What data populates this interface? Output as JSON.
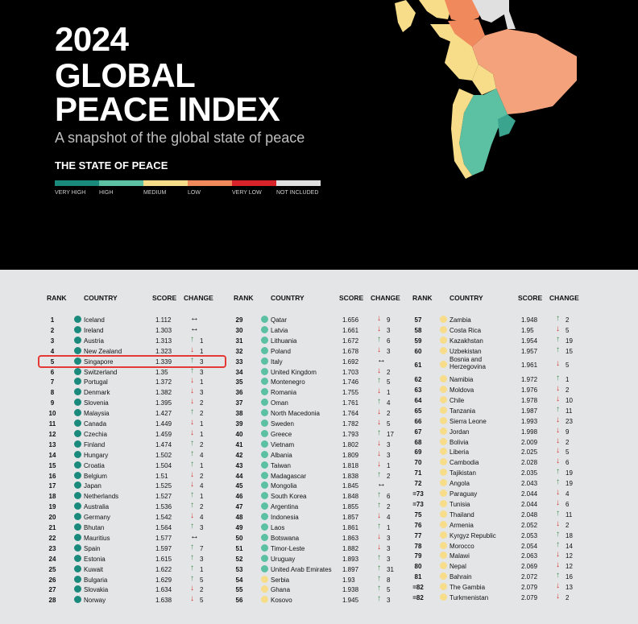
{
  "header": {
    "title_lines": [
      "2024",
      "GLOBAL",
      "PEACE INDEX"
    ],
    "subtitle": "A snapshot of the global state of peace",
    "section": "THE STATE OF PEACE"
  },
  "legend": [
    {
      "label": "VERY HIGH",
      "color": "#1a8a7d"
    },
    {
      "label": "HIGH",
      "color": "#5cc0a2"
    },
    {
      "label": "MEDIUM",
      "color": "#f7dd8a"
    },
    {
      "label": "LOW",
      "color": "#f08a5d"
    },
    {
      "label": "VERY LOW",
      "color": "#d8232a"
    },
    {
      "label": "NOT INCLUDED",
      "color": "#e0e0e0"
    }
  ],
  "table_headers": {
    "rank": "RANK",
    "country": "COUNTRY",
    "score": "SCORE",
    "change": "CHANGE"
  },
  "highlighted_country": "Singapore",
  "columns": [
    [
      {
        "rank": "1",
        "country": "Iceland",
        "score": "1.112",
        "dir": "same",
        "change": "",
        "color": "#1a8a7d"
      },
      {
        "rank": "2",
        "country": "Ireland",
        "score": "1.303",
        "dir": "same",
        "change": "",
        "color": "#1a8a7d"
      },
      {
        "rank": "3",
        "country": "Austria",
        "score": "1.313",
        "dir": "up",
        "change": "1",
        "color": "#1a8a7d"
      },
      {
        "rank": "4",
        "country": "New Zealand",
        "score": "1.323",
        "dir": "down",
        "change": "1",
        "color": "#1a8a7d"
      },
      {
        "rank": "5",
        "country": "Singapore",
        "score": "1.339",
        "dir": "up",
        "change": "3",
        "color": "#1a8a7d"
      },
      {
        "rank": "6",
        "country": "Switzerland",
        "score": "1.35",
        "dir": "up",
        "change": "3",
        "color": "#1a8a7d"
      },
      {
        "rank": "7",
        "country": "Portugal",
        "score": "1.372",
        "dir": "down",
        "change": "1",
        "color": "#1a8a7d"
      },
      {
        "rank": "8",
        "country": "Denmark",
        "score": "1.382",
        "dir": "down",
        "change": "3",
        "color": "#1a8a7d"
      },
      {
        "rank": "9",
        "country": "Slovenia",
        "score": "1.395",
        "dir": "down",
        "change": "2",
        "color": "#1a8a7d"
      },
      {
        "rank": "10",
        "country": "Malaysia",
        "score": "1.427",
        "dir": "up",
        "change": "2",
        "color": "#1a8a7d"
      },
      {
        "rank": "11",
        "country": "Canada",
        "score": "1.449",
        "dir": "down",
        "change": "1",
        "color": "#1a8a7d"
      },
      {
        "rank": "12",
        "country": "Czechia",
        "score": "1.459",
        "dir": "down",
        "change": "1",
        "color": "#1a8a7d"
      },
      {
        "rank": "13",
        "country": "Finland",
        "score": "1.474",
        "dir": "up",
        "change": "2",
        "color": "#1a8a7d"
      },
      {
        "rank": "14",
        "country": "Hungary",
        "score": "1.502",
        "dir": "up",
        "change": "4",
        "color": "#1a8a7d"
      },
      {
        "rank": "15",
        "country": "Croatia",
        "score": "1.504",
        "dir": "up",
        "change": "1",
        "color": "#1a8a7d"
      },
      {
        "rank": "16",
        "country": "Belgium",
        "score": "1.51",
        "dir": "down",
        "change": "2",
        "color": "#1a8a7d"
      },
      {
        "rank": "17",
        "country": "Japan",
        "score": "1.525",
        "dir": "down",
        "change": "4",
        "color": "#1a8a7d"
      },
      {
        "rank": "18",
        "country": "Netherlands",
        "score": "1.527",
        "dir": "up",
        "change": "1",
        "color": "#1a8a7d"
      },
      {
        "rank": "19",
        "country": "Australia",
        "score": "1.536",
        "dir": "up",
        "change": "2",
        "color": "#1a8a7d"
      },
      {
        "rank": "20",
        "country": "Germany",
        "score": "1.542",
        "dir": "down",
        "change": "4",
        "color": "#1a8a7d"
      },
      {
        "rank": "21",
        "country": "Bhutan",
        "score": "1.564",
        "dir": "up",
        "change": "3",
        "color": "#1a8a7d"
      },
      {
        "rank": "22",
        "country": "Mauritius",
        "score": "1.577",
        "dir": "same",
        "change": "",
        "color": "#1a8a7d"
      },
      {
        "rank": "23",
        "country": "Spain",
        "score": "1.597",
        "dir": "up",
        "change": "7",
        "color": "#1a8a7d"
      },
      {
        "rank": "24",
        "country": "Estonia",
        "score": "1.615",
        "dir": "up",
        "change": "3",
        "color": "#1a8a7d"
      },
      {
        "rank": "25",
        "country": "Kuwait",
        "score": "1.622",
        "dir": "up",
        "change": "1",
        "color": "#1a8a7d"
      },
      {
        "rank": "26",
        "country": "Bulgaria",
        "score": "1.629",
        "dir": "up",
        "change": "5",
        "color": "#1a8a7d"
      },
      {
        "rank": "27",
        "country": "Slovakia",
        "score": "1.634",
        "dir": "down",
        "change": "2",
        "color": "#1a8a7d"
      },
      {
        "rank": "28",
        "country": "Norway",
        "score": "1.638",
        "dir": "down",
        "change": "5",
        "color": "#1a8a7d"
      }
    ],
    [
      {
        "rank": "29",
        "country": "Qatar",
        "score": "1.656",
        "dir": "down",
        "change": "9",
        "color": "#5cc0a2"
      },
      {
        "rank": "30",
        "country": "Latvia",
        "score": "1.661",
        "dir": "down",
        "change": "3",
        "color": "#5cc0a2"
      },
      {
        "rank": "31",
        "country": "Lithuania",
        "score": "1.672",
        "dir": "up",
        "change": "6",
        "color": "#5cc0a2"
      },
      {
        "rank": "32",
        "country": "Poland",
        "score": "1.678",
        "dir": "down",
        "change": "3",
        "color": "#5cc0a2"
      },
      {
        "rank": "33",
        "country": "Italy",
        "score": "1.692",
        "dir": "same",
        "change": "",
        "color": "#5cc0a2"
      },
      {
        "rank": "34",
        "country": "United Kingdom",
        "score": "1.703",
        "dir": "down",
        "change": "2",
        "color": "#5cc0a2"
      },
      {
        "rank": "35",
        "country": "Montenegro",
        "score": "1.746",
        "dir": "up",
        "change": "5",
        "color": "#5cc0a2"
      },
      {
        "rank": "36",
        "country": "Romania",
        "score": "1.755",
        "dir": "down",
        "change": "1",
        "color": "#5cc0a2"
      },
      {
        "rank": "37",
        "country": "Oman",
        "score": "1.761",
        "dir": "up",
        "change": "4",
        "color": "#5cc0a2"
      },
      {
        "rank": "38",
        "country": "North Macedonia",
        "score": "1.764",
        "dir": "down",
        "change": "2",
        "color": "#5cc0a2"
      },
      {
        "rank": "39",
        "country": "Sweden",
        "score": "1.782",
        "dir": "down",
        "change": "5",
        "color": "#5cc0a2"
      },
      {
        "rank": "40",
        "country": "Greece",
        "score": "1.793",
        "dir": "up",
        "change": "17",
        "color": "#5cc0a2"
      },
      {
        "rank": "41",
        "country": "Vietnam",
        "score": "1.802",
        "dir": "down",
        "change": "3",
        "color": "#5cc0a2"
      },
      {
        "rank": "42",
        "country": "Albania",
        "score": "1.809",
        "dir": "down",
        "change": "3",
        "color": "#5cc0a2"
      },
      {
        "rank": "43",
        "country": "Taiwan",
        "score": "1.818",
        "dir": "down",
        "change": "1",
        "color": "#5cc0a2"
      },
      {
        "rank": "44",
        "country": "Madagascar",
        "score": "1.838",
        "dir": "up",
        "change": "2",
        "color": "#5cc0a2"
      },
      {
        "rank": "45",
        "country": "Mongolia",
        "score": "1.845",
        "dir": "same",
        "change": "",
        "color": "#5cc0a2"
      },
      {
        "rank": "46",
        "country": "South Korea",
        "score": "1.848",
        "dir": "up",
        "change": "6",
        "color": "#5cc0a2"
      },
      {
        "rank": "47",
        "country": "Argentina",
        "score": "1.855",
        "dir": "up",
        "change": "2",
        "color": "#5cc0a2"
      },
      {
        "rank": "48",
        "country": "Indonesia",
        "score": "1.857",
        "dir": "down",
        "change": "4",
        "color": "#5cc0a2"
      },
      {
        "rank": "49",
        "country": "Laos",
        "score": "1.861",
        "dir": "up",
        "change": "1",
        "color": "#5cc0a2"
      },
      {
        "rank": "50",
        "country": "Botswana",
        "score": "1.863",
        "dir": "down",
        "change": "3",
        "color": "#5cc0a2"
      },
      {
        "rank": "51",
        "country": "Timor-Leste",
        "score": "1.882",
        "dir": "down",
        "change": "3",
        "color": "#5cc0a2"
      },
      {
        "rank": "52",
        "country": "Uruguay",
        "score": "1.893",
        "dir": "up",
        "change": "3",
        "color": "#5cc0a2"
      },
      {
        "rank": "53",
        "country": "United Arab Emirates",
        "score": "1.897",
        "dir": "up",
        "change": "31",
        "color": "#5cc0a2"
      },
      {
        "rank": "54",
        "country": "Serbia",
        "score": "1.93",
        "dir": "up",
        "change": "8",
        "color": "#f7dd8a"
      },
      {
        "rank": "55",
        "country": "Ghana",
        "score": "1.938",
        "dir": "up",
        "change": "5",
        "color": "#f7dd8a"
      },
      {
        "rank": "56",
        "country": "Kosovo",
        "score": "1.945",
        "dir": "up",
        "change": "3",
        "color": "#f7dd8a"
      }
    ],
    [
      {
        "rank": "57",
        "country": "Zambia",
        "score": "1.948",
        "dir": "up",
        "change": "2",
        "color": "#f7dd8a"
      },
      {
        "rank": "58",
        "country": "Costa Rica",
        "score": "1.95",
        "dir": "down",
        "change": "5",
        "color": "#f7dd8a"
      },
      {
        "rank": "59",
        "country": "Kazakhstan",
        "score": "1.954",
        "dir": "up",
        "change": "19",
        "color": "#f7dd8a"
      },
      {
        "rank": "60",
        "country": "Uzbekistan",
        "score": "1.957",
        "dir": "up",
        "change": "15",
        "color": "#f7dd8a"
      },
      {
        "rank": "61",
        "country": "Bosnia and Herzegovina",
        "score": "1.961",
        "dir": "down",
        "change": "5",
        "color": "#f7dd8a",
        "tall": true
      },
      {
        "rank": "62",
        "country": "Namibia",
        "score": "1.972",
        "dir": "up",
        "change": "1",
        "color": "#f7dd8a"
      },
      {
        "rank": "63",
        "country": "Moldova",
        "score": "1.976",
        "dir": "down",
        "change": "2",
        "color": "#f7dd8a"
      },
      {
        "rank": "64",
        "country": "Chile",
        "score": "1.978",
        "dir": "down",
        "change": "10",
        "color": "#f7dd8a"
      },
      {
        "rank": "65",
        "country": "Tanzania",
        "score": "1.987",
        "dir": "up",
        "change": "11",
        "color": "#f7dd8a"
      },
      {
        "rank": "66",
        "country": "Sierra Leone",
        "score": "1.993",
        "dir": "down",
        "change": "23",
        "color": "#f7dd8a"
      },
      {
        "rank": "67",
        "country": "Jordan",
        "score": "1.998",
        "dir": "down",
        "change": "9",
        "color": "#f7dd8a"
      },
      {
        "rank": "68",
        "country": "Bolivia",
        "score": "2.009",
        "dir": "down",
        "change": "2",
        "color": "#f7dd8a"
      },
      {
        "rank": "69",
        "country": "Liberia",
        "score": "2.025",
        "dir": "down",
        "change": "5",
        "color": "#f7dd8a"
      },
      {
        "rank": "70",
        "country": "Cambodia",
        "score": "2.028",
        "dir": "down",
        "change": "6",
        "color": "#f7dd8a"
      },
      {
        "rank": "71",
        "country": "Tajikistan",
        "score": "2.035",
        "dir": "up",
        "change": "19",
        "color": "#f7dd8a"
      },
      {
        "rank": "72",
        "country": "Angola",
        "score": "2.043",
        "dir": "up",
        "change": "19",
        "color": "#f7dd8a"
      },
      {
        "rank": "=73",
        "country": "Paraguay",
        "score": "2.044",
        "dir": "down",
        "change": "4",
        "color": "#f7dd8a"
      },
      {
        "rank": "=73",
        "country": "Tunisia",
        "score": "2.044",
        "dir": "down",
        "change": "6",
        "color": "#f7dd8a"
      },
      {
        "rank": "75",
        "country": "Thailand",
        "score": "2.048",
        "dir": "up",
        "change": "11",
        "color": "#f7dd8a"
      },
      {
        "rank": "76",
        "country": "Armenia",
        "score": "2.052",
        "dir": "down",
        "change": "2",
        "color": "#f7dd8a"
      },
      {
        "rank": "77",
        "country": "Kyrgyz Republic",
        "score": "2.053",
        "dir": "up",
        "change": "18",
        "color": "#f7dd8a"
      },
      {
        "rank": "78",
        "country": "Morocco",
        "score": "2.054",
        "dir": "up",
        "change": "14",
        "color": "#f7dd8a"
      },
      {
        "rank": "79",
        "country": "Malawi",
        "score": "2.063",
        "dir": "down",
        "change": "12",
        "color": "#f7dd8a"
      },
      {
        "rank": "80",
        "country": "Nepal",
        "score": "2.069",
        "dir": "down",
        "change": "12",
        "color": "#f7dd8a"
      },
      {
        "rank": "81",
        "country": "Bahrain",
        "score": "2.072",
        "dir": "up",
        "change": "16",
        "color": "#f7dd8a"
      },
      {
        "rank": "=82",
        "country": "The Gambia",
        "score": "2.079",
        "dir": "down",
        "change": "13",
        "color": "#f7dd8a"
      },
      {
        "rank": "=82",
        "country": "Turkmenistan",
        "score": "2.079",
        "dir": "down",
        "change": "2",
        "color": "#f7dd8a"
      }
    ]
  ]
}
